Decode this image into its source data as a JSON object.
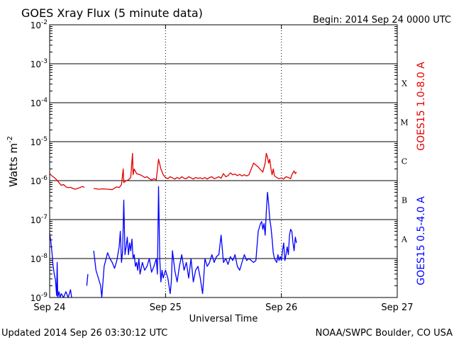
{
  "header": {
    "title": "GOES Xray Flux (5 minute data)",
    "begin": "Begin:  2014 Sep 24 0000 UTC"
  },
  "footer": {
    "updated": "Updated 2014 Sep 26 03:30:12 UTC",
    "credit": "NOAA/SWPC Boulder, CO USA"
  },
  "colors": {
    "long": "#e00000",
    "short": "#0000ff",
    "grid": "#000000"
  },
  "chart_data": {
    "type": "line",
    "title": "GOES Xray Flux (5 minute data)",
    "xlabel": "Universal Time",
    "ylabel_main": "Watts m",
    "ylabel_sup": "-2",
    "yscale": "log",
    "ylim": [
      1e-09,
      0.01
    ],
    "xlim_days": [
      0,
      3
    ],
    "x_ticks": [
      {
        "label": "Sep 24",
        "day": 0
      },
      {
        "label": "Sep 25",
        "day": 1
      },
      {
        "label": "Sep 26",
        "day": 2
      },
      {
        "label": "Sep 27",
        "day": 3
      }
    ],
    "y_ticks": [
      {
        "exp": -2,
        "base": "10",
        "sup": "-2"
      },
      {
        "exp": -3,
        "base": "10",
        "sup": "-3"
      },
      {
        "exp": -4,
        "base": "10",
        "sup": "-4"
      },
      {
        "exp": -5,
        "base": "10",
        "sup": "-5"
      },
      {
        "exp": -6,
        "base": "10",
        "sup": "-6"
      },
      {
        "exp": -7,
        "base": "10",
        "sup": "-7"
      },
      {
        "exp": -8,
        "base": "10",
        "sup": "-8"
      },
      {
        "exp": -9,
        "base": "10",
        "sup": "-9"
      }
    ],
    "flare_classes": [
      {
        "label": "X",
        "exp": -3.5
      },
      {
        "label": "M",
        "exp": -4.5
      },
      {
        "label": "C",
        "exp": -5.5
      },
      {
        "label": "B",
        "exp": -6.5
      },
      {
        "label": "A",
        "exp": -7.5
      }
    ],
    "series": [
      {
        "name": "GOES15 1.0-8.0 A",
        "color": "#e00000",
        "points": [
          [
            0.0,
            -5.82
          ],
          [
            0.02,
            -5.88
          ],
          [
            0.04,
            -5.92
          ],
          [
            0.06,
            -5.98
          ],
          [
            0.08,
            -6.05
          ],
          [
            0.1,
            -6.12
          ],
          [
            0.12,
            -6.1
          ],
          [
            0.14,
            -6.16
          ],
          [
            0.16,
            -6.18
          ],
          [
            0.18,
            -6.17
          ],
          [
            0.2,
            -6.2
          ],
          [
            0.22,
            -6.22
          ],
          [
            0.24,
            -6.2
          ],
          [
            0.26,
            -6.18
          ],
          [
            0.28,
            -6.15
          ],
          [
            0.3,
            -6.17
          ],
          null,
          [
            0.38,
            -6.2
          ],
          [
            0.42,
            -6.22
          ],
          [
            0.46,
            -6.21
          ],
          [
            0.5,
            -6.22
          ],
          [
            0.54,
            -6.23
          ],
          [
            0.56,
            -6.19
          ],
          [
            0.58,
            -6.16
          ],
          [
            0.6,
            -6.18
          ],
          [
            0.62,
            -6.1
          ],
          [
            0.635,
            -5.7
          ],
          [
            0.64,
            -6.05
          ],
          [
            0.66,
            -6.0
          ],
          [
            0.68,
            -5.98
          ],
          [
            0.7,
            -5.92
          ],
          [
            0.715,
            -5.3
          ],
          [
            0.72,
            -5.85
          ],
          [
            0.73,
            -5.7
          ],
          [
            0.75,
            -5.82
          ],
          [
            0.78,
            -5.85
          ],
          [
            0.8,
            -5.88
          ],
          [
            0.82,
            -5.92
          ],
          [
            0.84,
            -5.9
          ],
          [
            0.86,
            -5.95
          ],
          [
            0.88,
            -5.98
          ],
          [
            0.9,
            -5.95
          ],
          [
            0.92,
            -5.98
          ],
          [
            0.94,
            -5.45
          ],
          [
            0.96,
            -5.7
          ],
          [
            0.98,
            -5.85
          ],
          [
            1.0,
            -5.92
          ],
          [
            1.02,
            -5.95
          ],
          [
            1.04,
            -5.9
          ],
          [
            1.06,
            -5.93
          ],
          [
            1.08,
            -5.96
          ],
          [
            1.1,
            -5.92
          ],
          [
            1.12,
            -5.95
          ],
          [
            1.14,
            -5.9
          ],
          [
            1.16,
            -5.94
          ],
          [
            1.18,
            -5.95
          ],
          [
            1.2,
            -5.9
          ],
          [
            1.22,
            -5.93
          ],
          [
            1.24,
            -5.96
          ],
          [
            1.26,
            -5.92
          ],
          [
            1.28,
            -5.94
          ],
          [
            1.3,
            -5.93
          ],
          [
            1.32,
            -5.95
          ],
          [
            1.34,
            -5.92
          ],
          [
            1.36,
            -5.96
          ],
          [
            1.38,
            -5.92
          ],
          [
            1.4,
            -5.9
          ],
          [
            1.42,
            -5.95
          ],
          [
            1.44,
            -5.93
          ],
          [
            1.46,
            -5.9
          ],
          [
            1.48,
            -5.94
          ],
          [
            1.5,
            -5.82
          ],
          [
            1.52,
            -5.9
          ],
          [
            1.54,
            -5.87
          ],
          [
            1.56,
            -5.8
          ],
          [
            1.58,
            -5.85
          ],
          [
            1.6,
            -5.83
          ],
          [
            1.62,
            -5.87
          ],
          [
            1.64,
            -5.84
          ],
          [
            1.66,
            -5.88
          ],
          [
            1.68,
            -5.85
          ],
          [
            1.7,
            -5.88
          ],
          [
            1.72,
            -5.85
          ],
          [
            1.74,
            -5.7
          ],
          [
            1.76,
            -5.55
          ],
          [
            1.78,
            -5.6
          ],
          [
            1.8,
            -5.65
          ],
          [
            1.82,
            -5.72
          ],
          [
            1.84,
            -5.78
          ],
          [
            1.86,
            -5.55
          ],
          [
            1.87,
            -5.3
          ],
          [
            1.88,
            -5.4
          ],
          [
            1.89,
            -5.55
          ],
          [
            1.9,
            -5.45
          ],
          [
            1.91,
            -5.7
          ],
          [
            1.92,
            -5.85
          ],
          [
            1.93,
            -5.7
          ],
          [
            1.94,
            -5.88
          ],
          [
            1.96,
            -5.92
          ],
          [
            1.98,
            -5.95
          ],
          [
            2.0,
            -5.93
          ],
          [
            2.02,
            -5.96
          ],
          [
            2.04,
            -5.9
          ],
          [
            2.06,
            -5.92
          ],
          [
            2.08,
            -5.95
          ],
          [
            2.09,
            -5.85
          ],
          [
            2.1,
            -5.8
          ],
          [
            2.11,
            -5.75
          ],
          [
            2.12,
            -5.82
          ],
          [
            2.13,
            -5.78
          ]
        ]
      },
      {
        "name": "GOES15 0.5-4.0 A",
        "color": "#0000ff",
        "points": [
          [
            0.0,
            -7.35
          ],
          [
            0.01,
            -7.55
          ],
          [
            0.02,
            -7.85
          ],
          [
            0.03,
            -8.2
          ],
          [
            0.04,
            -8.4
          ],
          [
            0.05,
            -8.55
          ],
          [
            0.06,
            -8.95
          ],
          [
            0.065,
            -8.1
          ],
          [
            0.07,
            -9.0
          ],
          [
            0.08,
            -8.85
          ],
          [
            0.09,
            -9.0
          ],
          [
            0.1,
            -8.9
          ],
          [
            0.12,
            -9.0
          ],
          [
            0.14,
            -8.85
          ],
          [
            0.16,
            -9.0
          ],
          [
            0.18,
            -8.8
          ],
          [
            0.19,
            -9.0
          ],
          null,
          [
            0.32,
            -8.7
          ],
          [
            0.33,
            -8.4
          ],
          null,
          [
            0.38,
            -7.8
          ],
          [
            0.4,
            -8.3
          ],
          [
            0.42,
            -8.5
          ],
          [
            0.44,
            -8.7
          ],
          [
            0.45,
            -9.0
          ],
          [
            0.47,
            -8.2
          ],
          [
            0.5,
            -7.85
          ],
          [
            0.52,
            -8.0
          ],
          [
            0.54,
            -8.1
          ],
          [
            0.56,
            -8.25
          ],
          [
            0.58,
            -8.05
          ],
          [
            0.6,
            -7.7
          ],
          [
            0.61,
            -7.3
          ],
          [
            0.62,
            -8.1
          ],
          [
            0.63,
            -7.8
          ],
          [
            0.64,
            -6.5
          ],
          [
            0.65,
            -7.9
          ],
          [
            0.66,
            -7.7
          ],
          [
            0.67,
            -7.45
          ],
          [
            0.68,
            -7.9
          ],
          [
            0.69,
            -7.6
          ],
          [
            0.7,
            -7.8
          ],
          [
            0.71,
            -7.5
          ],
          [
            0.72,
            -8.0
          ],
          [
            0.73,
            -7.9
          ],
          [
            0.74,
            -8.2
          ],
          [
            0.75,
            -8.1
          ],
          [
            0.76,
            -8.3
          ],
          [
            0.77,
            -8.0
          ],
          [
            0.78,
            -8.4
          ],
          [
            0.8,
            -8.1
          ],
          [
            0.82,
            -8.3
          ],
          [
            0.84,
            -8.2
          ],
          [
            0.86,
            -8.0
          ],
          [
            0.88,
            -8.35
          ],
          [
            0.9,
            -8.2
          ],
          [
            0.92,
            -8.0
          ],
          [
            0.93,
            -8.4
          ],
          [
            0.94,
            -6.15
          ],
          [
            0.95,
            -8.0
          ],
          [
            0.96,
            -8.6
          ],
          [
            0.97,
            -8.3
          ],
          [
            0.98,
            -8.5
          ],
          [
            1.0,
            -8.3
          ],
          [
            1.02,
            -8.5
          ],
          [
            1.04,
            -8.9
          ],
          [
            1.05,
            -8.6
          ],
          [
            1.06,
            -7.8
          ],
          [
            1.08,
            -8.3
          ],
          [
            1.1,
            -8.6
          ],
          [
            1.12,
            -8.2
          ],
          [
            1.14,
            -7.9
          ],
          [
            1.16,
            -8.3
          ],
          [
            1.18,
            -8.1
          ],
          [
            1.2,
            -8.5
          ],
          [
            1.22,
            -8.0
          ],
          [
            1.24,
            -8.6
          ],
          [
            1.26,
            -8.3
          ],
          [
            1.28,
            -8.2
          ],
          [
            1.3,
            -8.5
          ],
          [
            1.32,
            -8.9
          ],
          [
            1.33,
            -8.5
          ],
          [
            1.34,
            -8.0
          ],
          [
            1.36,
            -8.2
          ],
          [
            1.38,
            -8.1
          ],
          [
            1.4,
            -7.9
          ],
          [
            1.42,
            -8.1
          ],
          [
            1.44,
            -7.95
          ],
          [
            1.46,
            -7.9
          ],
          [
            1.48,
            -7.4
          ],
          [
            1.5,
            -8.1
          ],
          [
            1.52,
            -8.0
          ],
          [
            1.54,
            -8.15
          ],
          [
            1.56,
            -7.95
          ],
          [
            1.58,
            -8.05
          ],
          [
            1.6,
            -7.9
          ],
          [
            1.62,
            -8.2
          ],
          [
            1.64,
            -8.3
          ],
          [
            1.66,
            -8.1
          ],
          [
            1.68,
            -7.9
          ],
          [
            1.7,
            -8.05
          ],
          [
            1.72,
            -8.0
          ],
          [
            1.74,
            -8.05
          ],
          [
            1.76,
            -8.1
          ],
          [
            1.78,
            -8.05
          ],
          [
            1.8,
            -7.3
          ],
          [
            1.82,
            -7.1
          ],
          [
            1.83,
            -7.05
          ],
          [
            1.84,
            -7.25
          ],
          [
            1.85,
            -7.1
          ],
          [
            1.86,
            -7.4
          ],
          [
            1.87,
            -6.8
          ],
          [
            1.88,
            -6.3
          ],
          [
            1.89,
            -6.6
          ],
          [
            1.9,
            -7.0
          ],
          [
            1.91,
            -7.2
          ],
          [
            1.92,
            -7.5
          ],
          [
            1.93,
            -7.85
          ],
          [
            1.94,
            -8.0
          ],
          [
            1.95,
            -8.05
          ],
          [
            1.96,
            -8.1
          ],
          [
            1.97,
            -7.9
          ],
          [
            1.98,
            -8.05
          ],
          [
            1.99,
            -7.95
          ],
          [
            2.0,
            -8.05
          ],
          [
            2.01,
            -7.8
          ],
          [
            2.02,
            -7.6
          ],
          [
            2.03,
            -8.05
          ],
          [
            2.04,
            -7.9
          ],
          [
            2.05,
            -7.7
          ],
          [
            2.06,
            -7.9
          ],
          [
            2.07,
            -7.4
          ],
          [
            2.08,
            -7.25
          ],
          [
            2.09,
            -7.3
          ],
          [
            2.1,
            -7.6
          ],
          [
            2.11,
            -7.8
          ],
          [
            2.12,
            -7.45
          ],
          [
            2.13,
            -7.6
          ]
        ]
      }
    ],
    "grid": "horizontal at decades, vertical dotted at day boundaries"
  }
}
